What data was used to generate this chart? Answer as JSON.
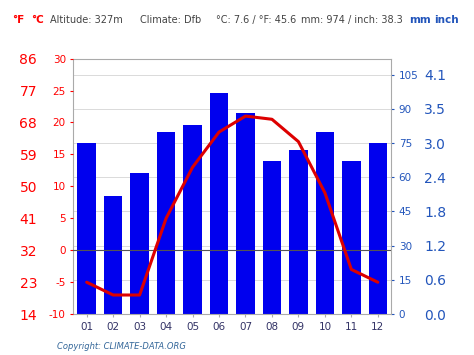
{
  "months": [
    "01",
    "02",
    "03",
    "04",
    "05",
    "06",
    "07",
    "08",
    "09",
    "10",
    "11",
    "12"
  ],
  "precipitation_mm": [
    75,
    52,
    62,
    80,
    83,
    97,
    88,
    67,
    72,
    80,
    67,
    75
  ],
  "temperature_c": [
    -5,
    -7,
    -7,
    5,
    13,
    18.5,
    21,
    20.5,
    17,
    9,
    -3,
    -5
  ],
  "bar_color": "#0000ee",
  "line_color": "#dd0000",
  "left_temp_ticks_f": [
    14,
    23,
    32,
    41,
    50,
    59,
    68,
    77,
    86
  ],
  "left_temp_ticks_c": [
    -10,
    -5,
    0,
    5,
    10,
    15,
    20,
    25,
    30
  ],
  "right_precip_ticks_mm": [
    0,
    15,
    30,
    45,
    60,
    75,
    90,
    105
  ],
  "right_precip_ticks_inch": [
    "0.0",
    "0.6",
    "1.2",
    "1.8",
    "2.4",
    "3.0",
    "3.5",
    "4.1"
  ],
  "ylim_temp": [
    -10,
    30
  ],
  "ylim_precip": [
    0,
    112
  ],
  "header_left_f": "°F",
  "header_left_c": "°C",
  "header_right_mm": "mm",
  "header_right_inch": "inch",
  "copyright_text": "Copyright: CLIMATE-DATA.ORG",
  "zero_line_color": "#555555",
  "grid_color": "#cccccc",
  "background_color": "#ffffff",
  "spine_color": "#aaaaaa"
}
